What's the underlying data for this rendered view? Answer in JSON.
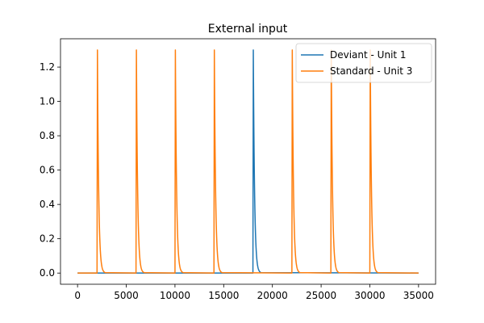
{
  "chart_data": {
    "type": "line",
    "title": "External input",
    "xlabel": "",
    "ylabel": "",
    "xlim": [
      -1750,
      36750
    ],
    "ylim": [
      -0.065,
      1.365
    ],
    "xticks": [
      0,
      5000,
      10000,
      15000,
      20000,
      25000,
      30000,
      35000
    ],
    "yticks": [
      0.0,
      0.2,
      0.4,
      0.6,
      0.8,
      1.0,
      1.2
    ],
    "grid": false,
    "legend": "top-right",
    "pulse_amplitude": 1.3,
    "series": [
      {
        "name": "Deviant - Unit 1",
        "color": "#1f77b4",
        "x_start": 0,
        "x_end": 35000,
        "pulse_onsets": [
          18000
        ]
      },
      {
        "name": "Standard - Unit 3",
        "color": "#ff7f0e",
        "x_start": 0,
        "x_end": 35000,
        "pulse_onsets": [
          2000,
          6000,
          10000,
          14000,
          22000,
          26000,
          30000
        ]
      }
    ]
  }
}
